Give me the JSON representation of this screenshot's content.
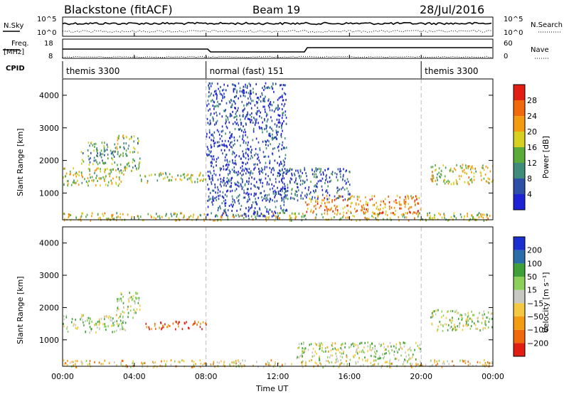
{
  "header": {
    "station": "Blackstone (fitACF)",
    "beam": "Beam 19",
    "date": "28/Jul/2016"
  },
  "nsky": {
    "label": "N.Sky",
    "ticks": [
      "10^5",
      "10^0"
    ],
    "right_ticks": [
      "10^5",
      "10^0"
    ],
    "right_label": "N.Search"
  },
  "freq": {
    "label_line1": "Freq.",
    "label_line2": "[MHz]",
    "ticks": [
      "18",
      "8"
    ],
    "right_ticks": [
      "60",
      "0"
    ],
    "right_label": "Nave"
  },
  "cpid": {
    "label": "CPID",
    "segments": [
      {
        "label": "themis 3300",
        "start_hour": 0,
        "end_hour": 8.0
      },
      {
        "label": "normal (fast) 151",
        "start_hour": 8.0,
        "end_hour": 20.0
      },
      {
        "label": "themis 3300",
        "start_hour": 20.0,
        "end_hour": 24.0
      }
    ]
  },
  "x_axis": {
    "label": "Time UT",
    "ticks": [
      "00:00",
      "04:00",
      "08:00",
      "12:00",
      "16:00",
      "20:00",
      "00:00"
    ]
  },
  "colors": {
    "power": [
      "#1e22d6",
      "#2e4fa8",
      "#3f8c7a",
      "#5bab3a",
      "#d8d021",
      "#f39c12",
      "#f06a0c",
      "#e01e12"
    ],
    "velocity": [
      "#1b2fd0",
      "#2a6da8",
      "#3fa03a",
      "#8ad05a",
      "#c8c8c2",
      "#f5c842",
      "#f39c12",
      "#f06a0c",
      "#e01e12"
    ]
  },
  "chart_data": [
    {
      "type": "heatmap",
      "panel": "power",
      "ylabel": "Slant Range [km]",
      "xlabel": "",
      "xlim_hours": [
        0,
        24
      ],
      "ylim_km": [
        180,
        4500
      ],
      "yticks": [
        "1000",
        "2000",
        "3000",
        "4000"
      ],
      "colorbar_label": "Power [dB]",
      "colorbar_ticks": [
        "4",
        "8",
        "12",
        "16",
        "20",
        "24",
        "28"
      ],
      "scatter_regions": [
        {
          "t0": 0.0,
          "t1": 3.5,
          "r0": 1250,
          "r1": 1800,
          "level": 0.55
        },
        {
          "t0": 1.0,
          "t1": 3.0,
          "r0": 1900,
          "r1": 2600,
          "level": 0.35
        },
        {
          "t0": 3.0,
          "t1": 4.3,
          "r0": 1700,
          "r1": 2800,
          "level": 0.45
        },
        {
          "t0": 4.3,
          "t1": 8.0,
          "r0": 1350,
          "r1": 1650,
          "level": 0.5
        },
        {
          "t0": 0.0,
          "t1": 24.0,
          "r0": 180,
          "r1": 420,
          "level": 0.55
        },
        {
          "t0": 13.5,
          "t1": 20.0,
          "r0": 400,
          "r1": 950,
          "level": 0.72
        },
        {
          "t0": 12.0,
          "t1": 16.0,
          "r0": 800,
          "r1": 1800,
          "level": 0.2
        },
        {
          "t0": 20.5,
          "t1": 24.0,
          "r0": 1300,
          "r1": 1900,
          "level": 0.55
        },
        {
          "t0": 8.0,
          "t1": 12.5,
          "r0": 300,
          "r1": 4400,
          "level": 0.15
        }
      ]
    },
    {
      "type": "heatmap",
      "panel": "velocity",
      "ylabel": "Slant Range [km]",
      "xlabel": "Time UT",
      "xlim_hours": [
        0,
        24
      ],
      "ylim_km": [
        180,
        4500
      ],
      "yticks": [
        "1000",
        "2000",
        "3000",
        "4000"
      ],
      "colorbar_label": "Velocity [m s⁻¹]",
      "colorbar_ticks": [
        "200",
        "100",
        "50",
        "15",
        "−15",
        "−50",
        "−100",
        "−200"
      ],
      "scatter_regions": [
        {
          "t0": 0.0,
          "t1": 3.5,
          "r0": 1250,
          "r1": 1800,
          "level": 0.45
        },
        {
          "t0": 3.0,
          "t1": 4.3,
          "r0": 1700,
          "r1": 2500,
          "level": 0.45
        },
        {
          "t0": 4.5,
          "t1": 8.0,
          "r0": 1350,
          "r1": 1600,
          "level": 0.9
        },
        {
          "t0": 0.0,
          "t1": 24.0,
          "r0": 180,
          "r1": 400,
          "level": 0.6
        },
        {
          "t0": 13.0,
          "t1": 20.0,
          "r0": 400,
          "r1": 950,
          "level": 0.45
        },
        {
          "t0": 20.5,
          "t1": 24.0,
          "r0": 1300,
          "r1": 1950,
          "level": 0.45
        }
      ]
    }
  ]
}
